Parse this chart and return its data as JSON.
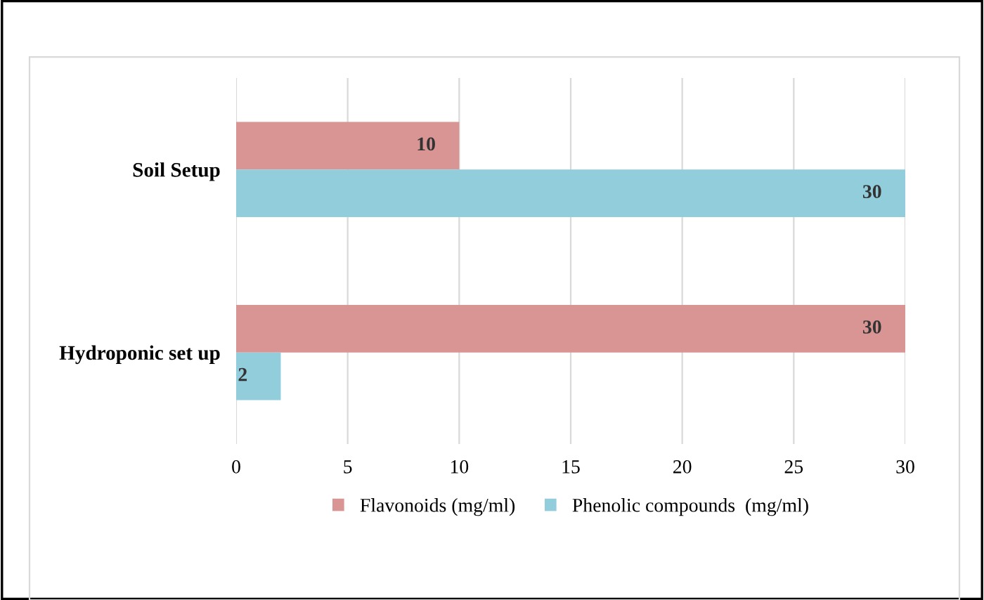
{
  "chart_data": {
    "type": "bar",
    "orientation": "horizontal",
    "categories": [
      "Soil Setup",
      "Hydroponic set up"
    ],
    "series": [
      {
        "name": "Flavonoids (mg/ml)",
        "color": "#d99594",
        "values": [
          10,
          30
        ]
      },
      {
        "name": "Phenolic compounds  (mg/ml)",
        "color": "#92cddc",
        "values": [
          30,
          2
        ]
      }
    ],
    "xlim": [
      0,
      30
    ],
    "xticks": [
      0,
      5,
      10,
      15,
      20,
      25,
      30
    ],
    "grid": "x",
    "legend": "bottom",
    "data_labels": true
  }
}
